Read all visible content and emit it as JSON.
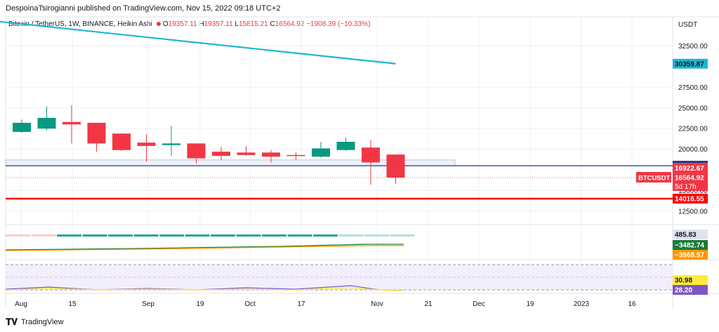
{
  "header": {
    "publisher_line": "DespoinaTsirogianni published on TradingView.com, Nov 15, 2022 09:18 UTC+2"
  },
  "legend": {
    "symbol": "Bitcoin / TetherUS, 1W, BINANCE, Heikin Ashi",
    "open_label": "O",
    "open": "19357.11",
    "high_label": "H",
    "high": "19357.11",
    "low_label": "L",
    "low": "15815.21",
    "close_label": "C",
    "close": "16564.92",
    "change": "−1908.39 (−10.33%)"
  },
  "footer": {
    "brand": "TradingView"
  },
  "chart_data": {
    "type": "candlestick",
    "price_axis": {
      "currency": "USDT",
      "ticks": [
        {
          "value": 32500,
          "label": "32500.00"
        },
        {
          "value": 27500,
          "label": "27500.00"
        },
        {
          "value": 25000,
          "label": "25000.00"
        },
        {
          "value": 22500,
          "label": "22500.00"
        },
        {
          "value": 20000,
          "label": "20000.00"
        },
        {
          "value": 15000,
          "label": "15000.00"
        },
        {
          "value": 12500,
          "label": "12500.00"
        }
      ]
    },
    "time_axis_labels": [
      "Aug",
      "15",
      "Sep",
      "19",
      "Oct",
      "17",
      "Nov",
      "21",
      "Dec",
      "19",
      "2023",
      "16"
    ],
    "candles": [
      {
        "o": 22100,
        "h": 23600,
        "l": 22000,
        "c": 23200
      },
      {
        "o": 22500,
        "h": 25200,
        "l": 22300,
        "c": 23800
      },
      {
        "o": 23300,
        "h": 25300,
        "l": 20700,
        "c": 23000
      },
      {
        "o": 23200,
        "h": 23200,
        "l": 19700,
        "c": 20700
      },
      {
        "o": 21900,
        "h": 21900,
        "l": 19800,
        "c": 19900
      },
      {
        "o": 20800,
        "h": 21800,
        "l": 18500,
        "c": 20400
      },
      {
        "o": 20500,
        "h": 22800,
        "l": 19200,
        "c": 20700
      },
      {
        "o": 20700,
        "h": 20700,
        "l": 18300,
        "c": 18900
      },
      {
        "o": 19700,
        "h": 20300,
        "l": 18700,
        "c": 19200
      },
      {
        "o": 19600,
        "h": 20400,
        "l": 19200,
        "c": 19300
      },
      {
        "o": 19600,
        "h": 19900,
        "l": 18400,
        "c": 19100
      },
      {
        "o": 19300,
        "h": 19600,
        "l": 18700,
        "c": 19200
      },
      {
        "o": 19100,
        "h": 20900,
        "l": 19000,
        "c": 20100
      },
      {
        "o": 19900,
        "h": 21400,
        "l": 19800,
        "c": 20900
      },
      {
        "o": 20200,
        "h": 21100,
        "l": 15700,
        "c": 18400
      },
      {
        "o": 19357.11,
        "h": 19357.11,
        "l": 15815.21,
        "c": 16564.92
      }
    ],
    "trendline": {
      "from": {
        "candle": -1,
        "price": 35500
      },
      "to": {
        "candle": 15,
        "price": 30359.87
      }
    },
    "levels": [
      {
        "label": "18000.00",
        "value": 18000,
        "color": "#1e3a8a"
      },
      {
        "label": "14016.55",
        "value": 14016.55,
        "color": "#ff0000"
      }
    ],
    "current_price": {
      "symbol": "BTCUSDT",
      "value": "16564.92",
      "countdown": "5d 17h",
      "ask": "16922.67"
    },
    "trendline_label": "30359.87",
    "indicator1_labels": [
      "485.83",
      "−3482.74",
      "−3968.57"
    ],
    "indicator1_colors": [
      "#e0e3eb",
      "#1b7a3a",
      "#ff9800"
    ],
    "indicator2_labels": [
      "30.98",
      "28.20"
    ],
    "indicator2_colors": [
      "#ffeb3b",
      "#7e57c2"
    ],
    "colors": {
      "up": "#089981",
      "down": "#f23645",
      "trend": "#1fb5d0",
      "grid": "#eef0f4"
    }
  }
}
